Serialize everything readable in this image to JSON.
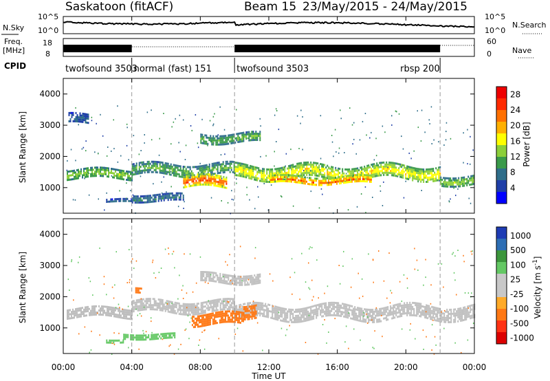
{
  "header": {
    "station": "Saskatoon (fitACF)",
    "beam": "Beam 15",
    "date_range": "23/May/2015 - 24/May/2015"
  },
  "strip_labels": {
    "nsky": "N.Sky",
    "nsky_top": "10^5",
    "nsky_bottom": "10^0",
    "nsearch": "N.Search",
    "nsearch_top": "10^5",
    "nsearch_bottom": "10^0",
    "freq_line1": "Freq.",
    "freq_line2": "[MHz]",
    "freq_top": "18",
    "freq_bottom": "8",
    "nave": "Nave",
    "nave_top": "60",
    "nave_bottom": "0",
    "cpid": "CPID"
  },
  "cpid_segments": [
    {
      "label": "twofsound 3503",
      "start_h": 0,
      "end_h": 4
    },
    {
      "label": "normal (fast) 151",
      "start_h": 4,
      "end_h": 10
    },
    {
      "label": "twofsound 3503",
      "start_h": 10,
      "end_h": 22
    },
    {
      "label": "rbsp 200",
      "start_h": 22,
      "end_h": 24
    }
  ],
  "colors": {
    "power_scale": [
      "#0000ff",
      "#1f3fa8",
      "#2f6e8a",
      "#3a9a4a",
      "#8ccf3a",
      "#ffff00",
      "#ffb000",
      "#ff7000",
      "#ff2a00",
      "#ee0000"
    ],
    "velocity_scale": [
      "#1e3cb4",
      "#2d6eb4",
      "#3c963c",
      "#64c864",
      "#c8c8c8",
      "#c8c8c8",
      "#ffaa28",
      "#ff7814",
      "#ff3214",
      "#dc0000"
    ],
    "ground_scatter": "#bebebe"
  },
  "chart_data": [
    {
      "type": "heatmap",
      "panel": "power",
      "ylabel": "Slant Range [km]",
      "xlabel": "Time UT",
      "ylim": [
        180,
        4500
      ],
      "yticks": [
        1000,
        2000,
        3000,
        4000
      ],
      "xlim_hours": [
        0,
        24
      ],
      "xticks": [
        "00:00",
        "04:00",
        "08:00",
        "12:00",
        "16:00",
        "20:00",
        "00:00"
      ],
      "colorbar_label": "Power [dB]",
      "colorbar_ticks": [
        "4",
        "8",
        "12",
        "16",
        "20",
        "24",
        "28"
      ],
      "colorbar_range": [
        0,
        30
      ],
      "scatter_bands": [
        {
          "start_h": 0.2,
          "end_h": 4.0,
          "center_km": 1450,
          "width_km": 300,
          "power_db": 14
        },
        {
          "start_h": 0.3,
          "end_h": 1.5,
          "center_km": 3200,
          "width_km": 300,
          "power_db": 6
        },
        {
          "start_h": 2.5,
          "end_h": 4.0,
          "center_km": 580,
          "width_km": 120,
          "power_db": 6
        },
        {
          "start_h": 4.0,
          "end_h": 7.0,
          "center_km": 700,
          "width_km": 200,
          "power_db": 8
        },
        {
          "start_h": 4.0,
          "end_h": 10.0,
          "center_km": 1600,
          "width_km": 350,
          "power_db": 12
        },
        {
          "start_h": 7.0,
          "end_h": 9.5,
          "center_km": 1200,
          "width_km": 350,
          "power_db": 26
        },
        {
          "start_h": 8.0,
          "end_h": 11.5,
          "center_km": 2600,
          "width_km": 300,
          "power_db": 12
        },
        {
          "start_h": 10.0,
          "end_h": 22.0,
          "center_km": 1500,
          "width_km": 450,
          "power_db": 18
        },
        {
          "start_h": 12.0,
          "end_h": 18.0,
          "center_km": 1250,
          "width_km": 250,
          "power_db": 24
        },
        {
          "start_h": 22.0,
          "end_h": 24.0,
          "center_km": 1250,
          "width_km": 300,
          "power_db": 14
        }
      ]
    },
    {
      "type": "heatmap",
      "panel": "velocity",
      "ylabel": "Slant Range [km]",
      "xlabel": "Time UT",
      "ylim": [
        180,
        4500
      ],
      "yticks": [
        1000,
        2000,
        3000,
        4000
      ],
      "xlim_hours": [
        0,
        24
      ],
      "xticks": [
        "00:00",
        "04:00",
        "08:00",
        "12:00",
        "16:00",
        "20:00",
        "00:00"
      ],
      "colorbar_label": "Velocity [m s^-1]",
      "colorbar_ticks": [
        "1000",
        "500",
        "100",
        "25",
        "-25",
        "-100",
        "-500",
        "-1000"
      ],
      "scatter_bands": [
        {
          "start_h": 0.2,
          "end_h": 4.0,
          "center_km": 1500,
          "width_km": 300,
          "velocity": 0
        },
        {
          "start_h": 4.0,
          "end_h": 10.0,
          "center_km": 1700,
          "width_km": 350,
          "velocity": 0
        },
        {
          "start_h": 8.0,
          "end_h": 11.5,
          "center_km": 2600,
          "width_km": 300,
          "velocity": 0
        },
        {
          "start_h": 10.0,
          "end_h": 24.0,
          "center_km": 1500,
          "width_km": 450,
          "velocity": 0
        },
        {
          "start_h": 7.5,
          "end_h": 10.5,
          "center_km": 1300,
          "width_km": 350,
          "velocity": -300
        },
        {
          "start_h": 10.5,
          "end_h": 11.3,
          "center_km": 1600,
          "width_km": 400,
          "velocity": -300
        },
        {
          "start_h": 3.5,
          "end_h": 6.5,
          "center_km": 750,
          "width_km": 150,
          "velocity": 100
        },
        {
          "start_h": 2.5,
          "end_h": 3.5,
          "center_km": 600,
          "width_km": 100,
          "velocity": 100
        },
        {
          "start_h": 4.2,
          "end_h": 4.6,
          "center_km": 2200,
          "width_km": 150,
          "velocity": -300
        }
      ]
    }
  ]
}
